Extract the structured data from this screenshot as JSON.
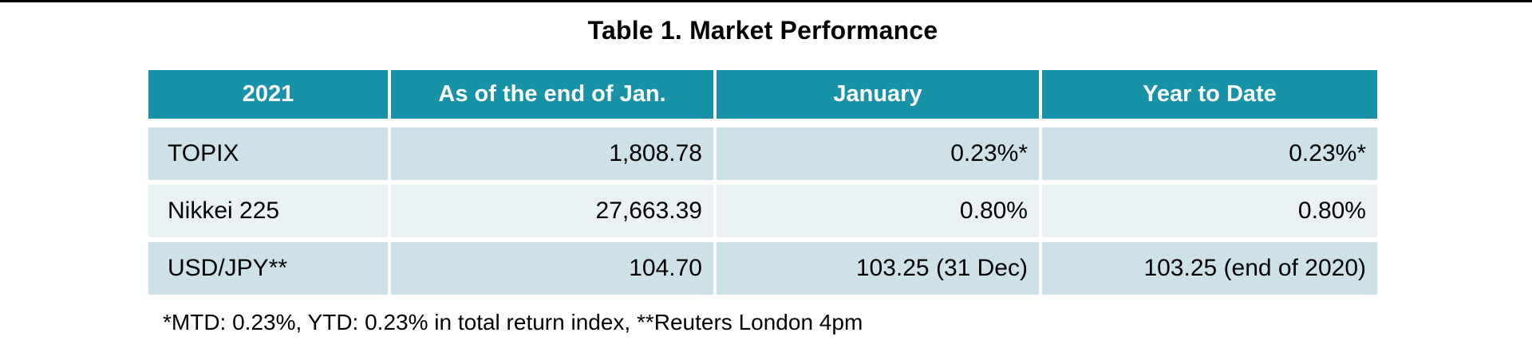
{
  "page": {
    "top_rule_color": "#000000",
    "background": "#ffffff"
  },
  "table": {
    "title": "Table 1. Market Performance",
    "colors": {
      "header_bg": "#1792a7",
      "header_text": "#ffffff",
      "row_bg_a": "#cce1e8",
      "row_bg_b": "#e9f1f5",
      "text": "#000000"
    },
    "columns": {
      "c0": "2021",
      "c1": "As of the end of Jan.",
      "c2": "January",
      "c3": "Year to Date"
    },
    "rows": [
      {
        "label": "TOPIX",
        "values": [
          "1,808.78",
          "0.23%*",
          "0.23%*"
        ]
      },
      {
        "label": "Nikkei 225",
        "values": [
          "27,663.39",
          "0.80%",
          "0.80%"
        ]
      },
      {
        "label": "USD/JPY**",
        "values": [
          "104.70",
          "103.25 (31 Dec)",
          "103.25 (end of 2020)"
        ]
      }
    ],
    "footnote": "*MTD: 0.23%, YTD: 0.23% in total return index, **Reuters London 4pm"
  },
  "chart_data": {
    "type": "table",
    "title": "Table 1. Market Performance",
    "columns": [
      "2021",
      "As of the end of Jan.",
      "January",
      "Year to Date"
    ],
    "rows": [
      [
        "TOPIX",
        "1,808.78",
        "0.23%*",
        "0.23%*"
      ],
      [
        "Nikkei 225",
        "27,663.39",
        "0.80%",
        "0.80%"
      ],
      [
        "USD/JPY**",
        "104.70",
        "103.25 (31 Dec)",
        "103.25 (end of 2020)"
      ]
    ],
    "footnote": "*MTD: 0.23%, YTD: 0.23% in total return index, **Reuters London 4pm",
    "layout": {
      "header_fill": "#1792a7",
      "alternating_row_fills": [
        "#cce1e8",
        "#e9f1f5"
      ]
    }
  }
}
